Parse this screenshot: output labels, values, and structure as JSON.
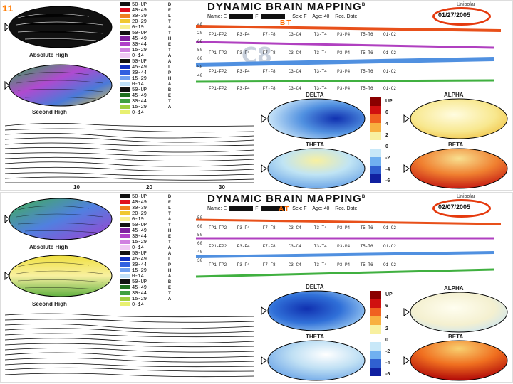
{
  "slide_number": "11",
  "colors": {
    "accent": "#e53a0e",
    "tag": "#ff6a00"
  },
  "panels": [
    {
      "id": "top",
      "title": "DYNAMIC BRAIN MAPPING",
      "superscript": "B",
      "info_name": "Name: E",
      "info_f": "F",
      "info_sex": "Sex: F",
      "info_age": "Age: 40",
      "info_recdate": "Rec. Date:",
      "date": "01/27/2005",
      "tag": "BT",
      "unipolar": "Unipolar",
      "label_left_top": "Absolute High",
      "label_left_bottom": "Second High",
      "map_labels": {
        "delta": "DELTA",
        "alpha": "ALPHA",
        "theta": "THETA",
        "beta": "BETA"
      }
    },
    {
      "id": "bottom",
      "title": "DYNAMIC BRAIN MAPPING",
      "superscript": "B",
      "info_name": "Name: E",
      "info_f": "F",
      "info_sex": "Sex: F",
      "info_age": "Age: 40",
      "info_recdate": "Rec. Date:",
      "date": "02/07/2005",
      "tag": "AT",
      "unipolar": "Unipolar",
      "label_left_top": "Absolute High",
      "label_left_bottom": "Second High",
      "map_labels": {
        "delta": "DELTA",
        "alpha": "ALPHA",
        "theta": "THETA",
        "beta": "BETA"
      }
    }
  ],
  "watermark": "C8",
  "scale_groups": [
    {
      "band": "DELTA",
      "letters": [
        "D",
        "E",
        "L",
        "T",
        "A"
      ],
      "rows": [
        "50-UP",
        "40-49",
        "30-39",
        "20-29",
        "0-19"
      ]
    },
    {
      "band": "THETA",
      "letters": [
        "T",
        "H",
        "E",
        "T",
        "A"
      ],
      "rows": [
        "50-UP",
        "45-49",
        "30-44",
        "15-29",
        "0-14"
      ]
    },
    {
      "band": "ALPHA",
      "letters": [
        "A",
        "L",
        "P",
        "H",
        "A"
      ],
      "rows": [
        "50-UP",
        "45-49",
        "30-44",
        "15-29",
        "0-14"
      ]
    },
    {
      "band": "BETA",
      "letters": [
        "B",
        "E",
        "T",
        "A"
      ],
      "rows": [
        "50-UP",
        "45-49",
        "30-44",
        "15-29",
        "0-14"
      ]
    }
  ],
  "scale_axis": [
    "40",
    "20",
    "0",
    "60",
    "50",
    "60",
    "50",
    "40",
    "60",
    "30"
  ],
  "channels": [
    "FP1-FP2",
    "F3-F4",
    "F7-F8",
    "C3-C4",
    "T3-T4",
    "P3-P4",
    "T5-T6",
    "O1-O2"
  ],
  "color_scale": {
    "top": "UP",
    "ticks": [
      "6",
      "4",
      "2",
      "0",
      "-2",
      "-4",
      "-6"
    ]
  },
  "spectrum_ticks": [
    "10",
    "20",
    "30"
  ]
}
